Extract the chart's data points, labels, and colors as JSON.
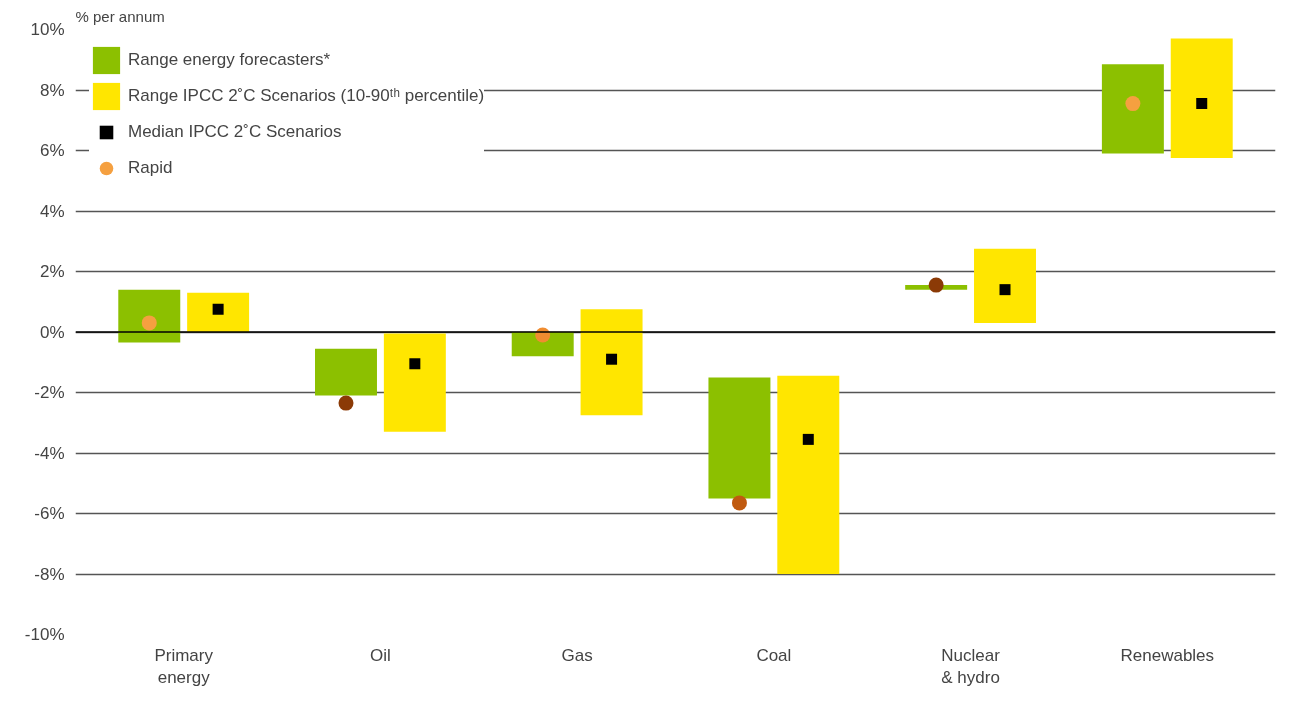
{
  "chart_data": {
    "type": "bar",
    "ylabel": "% per annum",
    "categories": [
      "Primary energy",
      "Oil",
      "Gas",
      "Coal",
      "Nuclear & hydro",
      "Renewables"
    ],
    "series": [
      {
        "name": "Range energy forecasters*",
        "color": "#8cc000",
        "base": [
          -0.35,
          -2.1,
          -0.8,
          -5.5,
          1.4,
          5.9
        ],
        "values": [
          1.75,
          1.55,
          0.8,
          4.0,
          0.15,
          2.95
        ]
      },
      {
        "name": "Range IPCC 2˚C Scenarios (10-90ᵗʰ percentile)",
        "color": "#ffe600",
        "base": [
          0,
          -3.3,
          -2.75,
          -8.0,
          0.3,
          5.75
        ],
        "values": [
          1.3,
          3.25,
          3.5,
          6.55,
          2.45,
          3.95
        ]
      },
      {
        "name": "Median IPCC 2˚C Scenarios",
        "type": "scatter",
        "marker": "square",
        "color": "#000000",
        "values": [
          0.75,
          -1.05,
          -0.9,
          -3.55,
          1.4,
          7.55
        ]
      },
      {
        "name": "Rapid",
        "type": "scatter",
        "marker": "circle",
        "color": "#8b3a06",
        "colors": [
          "#f5a040",
          "#8b3a06",
          "#f08c30",
          "#c05a10",
          "#8b3a06",
          "#f5a040"
        ],
        "values": [
          0.3,
          -2.35,
          -0.1,
          -5.65,
          1.55,
          7.55
        ]
      }
    ],
    "ylim": [
      -10,
      10
    ],
    "yticks": [
      {
        "value": -10,
        "label": "-10%"
      },
      {
        "value": -8,
        "label": "-8%"
      },
      {
        "value": -6,
        "label": "-6%"
      },
      {
        "value": -4,
        "label": "-4%"
      },
      {
        "value": -2,
        "label": "-2%"
      },
      {
        "value": 0,
        "label": "0%"
      },
      {
        "value": 2,
        "label": "2%"
      },
      {
        "value": 4,
        "label": "4%"
      },
      {
        "value": 6,
        "label": "6%"
      },
      {
        "value": 8,
        "label": "8%"
      },
      {
        "value": 10,
        "label": "10%"
      }
    ],
    "grid": "y",
    "legend": "top left"
  }
}
